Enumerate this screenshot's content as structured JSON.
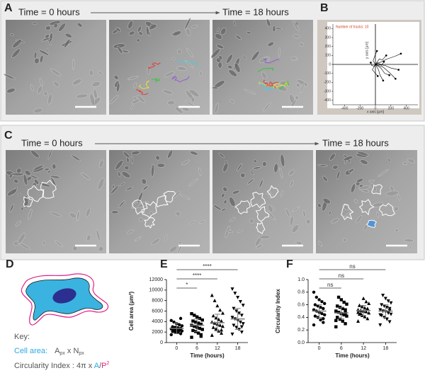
{
  "figure": {
    "labels": {
      "A": "A",
      "B": "B",
      "C": "C",
      "D": "D",
      "E": "E",
      "F": "F"
    },
    "panel_A": {
      "time_start": "Time = 0 hours",
      "time_end": "Time = 18 hours"
    },
    "panel_C": {
      "time_start": "Time = 0 hours",
      "time_end": "Time = 18 hours"
    },
    "panel_D": {
      "key_title": "Key:",
      "cell_area": {
        "name": "Cell area:",
        "a": "A",
        "a_sub": "px",
        "times": " x N",
        "n_sub": "px"
      },
      "circularity": {
        "name": "Circularity Index : 4π x ",
        "a": "A",
        "slash": "/",
        "p": "P",
        "exp": "2"
      }
    }
  },
  "chart_data": [
    {
      "type": "line",
      "annotation": "Number of tracks: 10",
      "x_label": "x axis [µm]",
      "y_label": "y axis [µm]",
      "xlim": [
        -550,
        550
      ],
      "ylim": [
        -450,
        450
      ],
      "xticks": [
        -400,
        -200,
        0,
        200,
        400
      ],
      "yticks": [
        -400,
        -300,
        -200,
        -100,
        0,
        100,
        200,
        300,
        400
      ],
      "color": "#000000",
      "tracks": [
        {
          "x": [
            0,
            80,
            150,
            250,
            330
          ],
          "y": [
            0,
            30,
            60,
            90,
            120
          ]
        },
        {
          "x": [
            0,
            -20,
            -50,
            -60
          ],
          "y": [
            0,
            -20,
            -10,
            20
          ]
        },
        {
          "x": [
            0,
            40,
            60,
            100
          ],
          "y": [
            0,
            -60,
            -120,
            -180
          ]
        },
        {
          "x": [
            0,
            70,
            120,
            180
          ],
          "y": [
            0,
            -40,
            -100,
            -120
          ]
        },
        {
          "x": [
            0,
            100,
            180,
            260
          ],
          "y": [
            0,
            -30,
            -90,
            -160
          ]
        },
        {
          "x": [
            0,
            -30,
            -10,
            20
          ],
          "y": [
            0,
            40,
            90,
            150
          ]
        },
        {
          "x": [
            0,
            50,
            90,
            140
          ],
          "y": [
            0,
            60,
            50,
            100
          ]
        },
        {
          "x": [
            0,
            120,
            200,
            300
          ],
          "y": [
            0,
            -10,
            -40,
            -60
          ]
        },
        {
          "x": [
            0,
            -40,
            -10,
            30
          ],
          "y": [
            0,
            -60,
            -90,
            -130
          ]
        },
        {
          "x": [
            0,
            30,
            80,
            110
          ],
          "y": [
            0,
            20,
            -10,
            30
          ]
        }
      ]
    },
    {
      "type": "dotplot",
      "y_label": "Cell area (µm²)",
      "x_label": "Time (hours)",
      "categories": [
        "0",
        "6",
        "12",
        "18"
      ],
      "markers": [
        "circle",
        "square",
        "triangle-up",
        "triangle-down"
      ],
      "color": "#000000",
      "ylim": [
        0,
        12000
      ],
      "yticks": [
        0,
        2000,
        4000,
        6000,
        8000,
        10000,
        12000
      ],
      "values": [
        [
          1500,
          1700,
          1900,
          2000,
          2100,
          2200,
          2300,
          2400,
          2500,
          2600,
          2700,
          2800,
          2900,
          3000,
          3200,
          3400,
          3600,
          3900,
          4200,
          4600
        ],
        [
          1000,
          1500,
          1800,
          2100,
          2300,
          2500,
          2700,
          2900,
          3100,
          3300,
          3500,
          3700,
          3900,
          4100,
          4300,
          4600,
          4900,
          5200,
          5500,
          1200
        ],
        [
          1400,
          1800,
          2200,
          2600,
          2900,
          3100,
          3300,
          3500,
          3700,
          3900,
          4100,
          4400,
          4700,
          5100,
          5600,
          6200,
          7000,
          8000,
          9000,
          2400
        ],
        [
          1600,
          2000,
          2500,
          2900,
          3300,
          3600,
          3900,
          4200,
          4500,
          4800,
          5200,
          5600,
          6000,
          6500,
          7100,
          7800,
          8600,
          9400,
          10200,
          3000
        ]
      ],
      "means": [
        2700,
        3300,
        3800,
        4500
      ],
      "errors": [
        1000,
        1200,
        1600,
        2000
      ],
      "comparisons": [
        {
          "categories": [
            "0",
            "6"
          ],
          "label": "*"
        },
        {
          "categories": [
            "0",
            "12"
          ],
          "label": "****"
        },
        {
          "categories": [
            "0",
            "18"
          ],
          "label": "****"
        }
      ]
    },
    {
      "type": "dotplot",
      "y_label": "Circularity Index",
      "x_label": "Time (hours)",
      "categories": [
        "0",
        "6",
        "12",
        "18"
      ],
      "markers": [
        "circle",
        "square",
        "triangle-up",
        "triangle-down"
      ],
      "color": "#000000",
      "ylim": [
        0,
        1
      ],
      "yticks": [
        {
          "value": 0,
          "label": "0.0"
        },
        0.2,
        0.4,
        0.6,
        0.8,
        {
          "value": 1,
          "label": "1.0"
        }
      ],
      "values": [
        [
          0.28,
          0.32,
          0.36,
          0.4,
          0.42,
          0.44,
          0.46,
          0.48,
          0.5,
          0.52,
          0.54,
          0.56,
          0.58,
          0.6,
          0.62,
          0.65,
          0.68,
          0.72,
          0.8,
          0.38
        ],
        [
          0.25,
          0.3,
          0.34,
          0.37,
          0.4,
          0.42,
          0.44,
          0.46,
          0.48,
          0.5,
          0.52,
          0.54,
          0.56,
          0.58,
          0.61,
          0.64,
          0.68,
          0.72,
          0.35,
          0.47
        ],
        [
          0.34,
          0.38,
          0.41,
          0.43,
          0.45,
          0.47,
          0.49,
          0.5,
          0.51,
          0.52,
          0.53,
          0.55,
          0.57,
          0.59,
          0.62,
          0.65,
          0.7,
          0.46,
          0.48,
          0.54
        ],
        [
          0.28,
          0.33,
          0.37,
          0.4,
          0.43,
          0.45,
          0.47,
          0.49,
          0.5,
          0.52,
          0.54,
          0.56,
          0.58,
          0.6,
          0.63,
          0.66,
          0.7,
          0.75,
          0.44,
          0.51
        ]
      ],
      "means": [
        0.5,
        0.47,
        0.51,
        0.5
      ],
      "errors": [
        0.1,
        0.09,
        0.08,
        0.1
      ],
      "comparisons": [
        {
          "categories": [
            "0",
            "6"
          ],
          "label": "ns"
        },
        {
          "categories": [
            "0",
            "12"
          ],
          "label": "ns"
        },
        {
          "categories": [
            "0",
            "18"
          ],
          "label": "ns"
        }
      ]
    }
  ]
}
